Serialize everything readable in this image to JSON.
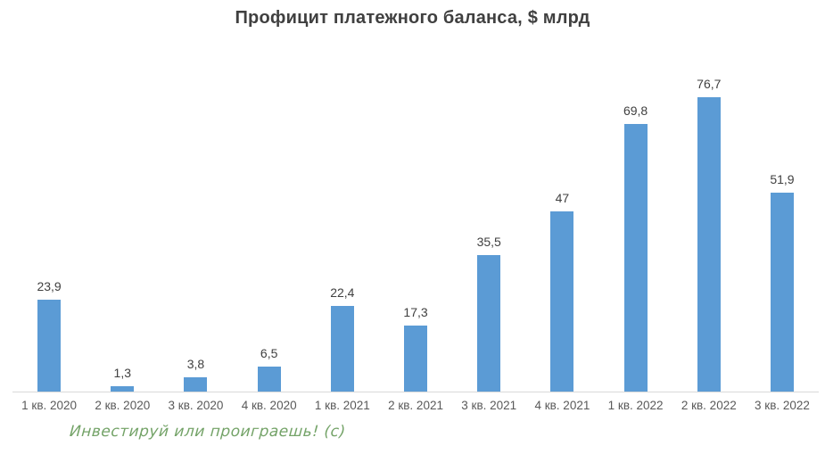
{
  "title": "Профицит платежного баланса, $ млрд",
  "watermark": "Инвестируй или проиграешь! (с)",
  "colors": {
    "bar": "#5B9BD5",
    "title_text": "#404040",
    "data_label": "#404040",
    "axis_label": "#595959",
    "axis_line": "#D9D9D9",
    "watermark": "#74A368",
    "background": "#FFFFFF"
  },
  "chart_data": {
    "type": "bar",
    "title": "Профицит платежного баланса, $ млрд",
    "categories": [
      "1 кв. 2020",
      "2 кв. 2020",
      "3 кв. 2020",
      "4 кв. 2020",
      "1 кв. 2021",
      "2 кв. 2021",
      "3 кв. 2021",
      "4 кв. 2021",
      "1 кв. 2022",
      "2 кв. 2022",
      "3 кв. 2022"
    ],
    "values": [
      23.9,
      1.3,
      3.8,
      6.5,
      22.4,
      17.3,
      35.5,
      47,
      69.8,
      76.7,
      51.9
    ],
    "value_labels": [
      "23,9",
      "1,3",
      "3,8",
      "6,5",
      "22,4",
      "17,3",
      "35,5",
      "47",
      "69,8",
      "76,7",
      "51,9"
    ],
    "xlabel": "",
    "ylabel": "",
    "ylim": [
      0,
      80
    ],
    "grid": false,
    "legend": "none",
    "data_labels_position": "above-bars",
    "x_axis_line": true,
    "y_axis_visible": false
  }
}
